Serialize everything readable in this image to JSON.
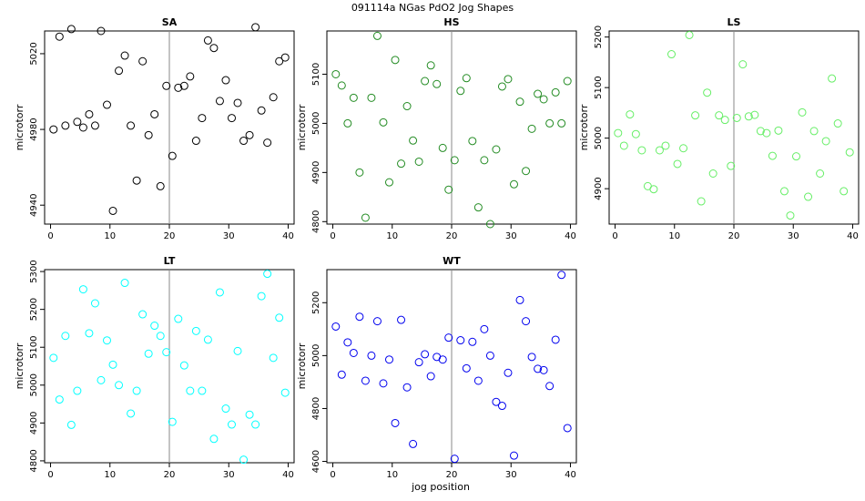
{
  "title": "091114a   NGas PdO2 Jog Shapes",
  "xlabel": "jog position",
  "ylabel": "microtorr",
  "chart_data": [
    {
      "type": "scatter",
      "title": "SA",
      "color": "#000000",
      "xlim": [
        -1,
        41
      ],
      "ylim": [
        4930,
        5032
      ],
      "xticks": [
        0,
        10,
        20,
        30,
        40
      ],
      "yticks": [
        4940,
        4980,
        5020
      ],
      "vline": 20,
      "ylabel": "microtorr",
      "x": [
        0.5,
        1.5,
        2.5,
        3.5,
        4.5,
        5.5,
        6.5,
        7.5,
        8.5,
        9.5,
        10.5,
        11.5,
        12.5,
        13.5,
        14.5,
        15.5,
        16.5,
        17.5,
        18.5,
        19.5,
        20.5,
        21.5,
        22.5,
        23.5,
        24.5,
        25.5,
        26.5,
        27.5,
        28.5,
        29.5,
        30.5,
        31.5,
        32.5,
        33.5,
        34.5,
        35.5,
        36.5,
        37.5,
        38.5,
        39.5
      ],
      "y": [
        4980,
        5029,
        4982,
        5033,
        4984,
        4981,
        4988,
        4982,
        5032,
        4993,
        4937,
        5011,
        5019,
        4982,
        4953,
        5016,
        4977,
        4988,
        4950,
        5003,
        4966,
        5002,
        5003,
        5008,
        4974,
        4986,
        5027,
        5023,
        4995,
        5006,
        4986,
        4994,
        4974,
        4977,
        5034,
        4990,
        4973,
        4997,
        5016,
        5018
      ]
    },
    {
      "type": "scatter",
      "title": "HS",
      "color": "#228B22",
      "xlim": [
        -1,
        41
      ],
      "ylim": [
        4795,
        5188
      ],
      "xticks": [
        0,
        10,
        20,
        30,
        40
      ],
      "yticks": [
        4800,
        4900,
        5000,
        5100
      ],
      "vline": 20,
      "ylabel": "microtorr",
      "x": [
        0.5,
        1.5,
        2.5,
        3.5,
        4.5,
        5.5,
        6.5,
        7.5,
        8.5,
        9.5,
        10.5,
        11.5,
        12.5,
        13.5,
        14.5,
        15.5,
        16.5,
        17.5,
        18.5,
        19.5,
        20.5,
        21.5,
        22.5,
        23.5,
        24.5,
        25.5,
        26.5,
        27.5,
        28.5,
        29.5,
        30.5,
        31.5,
        32.5,
        33.5,
        34.5,
        35.5,
        36.5,
        37.5,
        38.5,
        39.5
      ],
      "y": [
        5100,
        5077,
        5000,
        5052,
        4900,
        4808,
        5052,
        5178,
        5002,
        4880,
        5129,
        4918,
        5035,
        4965,
        4922,
        5086,
        5118,
        5080,
        4950,
        4865,
        4925,
        5066,
        5092,
        4964,
        4829,
        4925,
        4795,
        4947,
        5075,
        5090,
        4876,
        5044,
        4903,
        4989,
        5060,
        5049,
        5000,
        5063,
        5000,
        5086
      ]
    },
    {
      "type": "scatter",
      "title": "LS",
      "color": "#66EE66",
      "xlim": [
        -1,
        41
      ],
      "ylim": [
        4830,
        5212
      ],
      "xticks": [
        0,
        10,
        20,
        30,
        40
      ],
      "yticks": [
        4900,
        5000,
        5100,
        5200
      ],
      "vline": 20,
      "ylabel": "microtorr",
      "x": [
        0.5,
        1.5,
        2.5,
        3.5,
        4.5,
        5.5,
        6.5,
        7.5,
        8.5,
        9.5,
        10.5,
        11.5,
        12.5,
        13.5,
        14.5,
        15.5,
        16.5,
        17.5,
        18.5,
        19.5,
        20.5,
        21.5,
        22.5,
        23.5,
        24.5,
        25.5,
        26.5,
        27.5,
        28.5,
        29.5,
        30.5,
        31.5,
        32.5,
        33.5,
        34.5,
        35.5,
        36.5,
        37.5,
        38.5,
        39.5
      ],
      "y": [
        5010,
        4985,
        5047,
        5008,
        4976,
        4905,
        4899,
        4976,
        4985,
        5166,
        4949,
        4980,
        5204,
        5045,
        4875,
        5090,
        4930,
        5045,
        5036,
        4945,
        5040,
        5146,
        5043,
        5046,
        5014,
        5010,
        4965,
        5015,
        4895,
        4847,
        4964,
        5051,
        4884,
        5014,
        4930,
        4994,
        5118,
        5029,
        4895,
        4972
      ]
    },
    {
      "type": "scatter",
      "title": "LT",
      "color": "#00FFFF",
      "xlim": [
        -1,
        41
      ],
      "ylim": [
        4795,
        5305
      ],
      "xticks": [
        0,
        10,
        20,
        30,
        40
      ],
      "yticks": [
        4800,
        4900,
        5000,
        5100,
        5200,
        5300
      ],
      "vline": 20,
      "ylabel": "microtorr",
      "x": [
        0.5,
        1.5,
        2.5,
        3.5,
        4.5,
        5.5,
        6.5,
        7.5,
        8.5,
        9.5,
        10.5,
        11.5,
        12.5,
        13.5,
        14.5,
        15.5,
        16.5,
        17.5,
        18.5,
        19.5,
        20.5,
        21.5,
        22.5,
        23.5,
        24.5,
        25.5,
        26.5,
        27.5,
        28.5,
        29.5,
        30.5,
        31.5,
        32.5,
        33.5,
        34.5,
        35.5,
        36.5,
        37.5,
        38.5,
        39.5
      ],
      "y": [
        5072,
        4962,
        5130,
        4895,
        4985,
        5253,
        5137,
        5216,
        5013,
        5118,
        5054,
        5000,
        5270,
        4925,
        4985,
        5187,
        5083,
        5157,
        5130,
        5087,
        4903,
        5175,
        5052,
        4985,
        5143,
        4985,
        5120,
        4858,
        5245,
        4938,
        4896,
        5090,
        4803,
        4922,
        4896,
        5235,
        5294,
        5072,
        5178,
        4980
      ]
    },
    {
      "type": "scatter",
      "title": "WT",
      "color": "#0000EE",
      "xlim": [
        -1,
        41
      ],
      "ylim": [
        4595,
        5325
      ],
      "xticks": [
        0,
        10,
        20,
        30,
        40
      ],
      "yticks": [
        4600,
        4800,
        5000,
        5200
      ],
      "vline": 20,
      "ylabel": "microtorr",
      "x": [
        0.5,
        1.5,
        2.5,
        3.5,
        4.5,
        5.5,
        6.5,
        7.5,
        8.5,
        9.5,
        10.5,
        11.5,
        12.5,
        13.5,
        14.5,
        15.5,
        16.5,
        17.5,
        18.5,
        19.5,
        20.5,
        21.5,
        22.5,
        23.5,
        24.5,
        25.5,
        26.5,
        27.5,
        28.5,
        29.5,
        30.5,
        31.5,
        32.5,
        33.5,
        34.5,
        35.5,
        36.5,
        37.5,
        38.5,
        39.5
      ],
      "y": [
        5110,
        4928,
        5050,
        5010,
        5147,
        4905,
        5000,
        5130,
        4895,
        4985,
        4745,
        5135,
        4880,
        4666,
        4975,
        5005,
        4922,
        4995,
        4985,
        5068,
        4610,
        5058,
        4952,
        5052,
        4905,
        5100,
        5000,
        4825,
        4810,
        4935,
        4622,
        5210,
        5130,
        4995,
        4950,
        4945,
        4885,
        5060,
        5305,
        4726
      ]
    }
  ]
}
